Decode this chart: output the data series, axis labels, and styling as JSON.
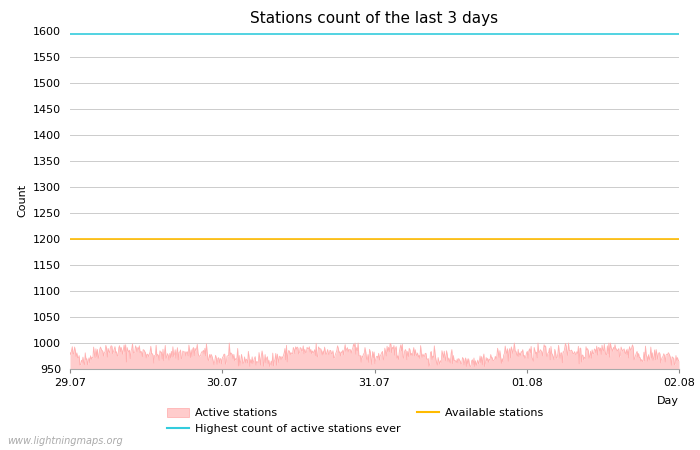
{
  "title": "Stations count of the last 3 days",
  "xlabel": "Day",
  "ylabel": "Count",
  "ylim": [
    950,
    1600
  ],
  "yticks": [
    950,
    1000,
    1050,
    1100,
    1150,
    1200,
    1250,
    1300,
    1350,
    1400,
    1450,
    1500,
    1550,
    1600
  ],
  "xtick_labels": [
    "29.07",
    "30.07",
    "31.07",
    "01.08",
    "02.08"
  ],
  "xtick_positions": [
    0.0,
    1.0,
    2.0,
    3.0,
    4.0
  ],
  "highest_count_value": 1595,
  "available_stations_value": 1200,
  "active_fill_color": "#ffcccc",
  "active_line_color": "#ffaaaa",
  "highest_line_color": "#33ccdd",
  "available_line_color": "#ffbb00",
  "grid_color": "#cccccc",
  "bg_color": "#ffffff",
  "watermark": "www.lightningmaps.org",
  "num_points": 800,
  "active_mean": 978,
  "active_std": 8,
  "title_fontsize": 11,
  "axis_fontsize": 8,
  "tick_fontsize": 8,
  "legend_fontsize": 8
}
